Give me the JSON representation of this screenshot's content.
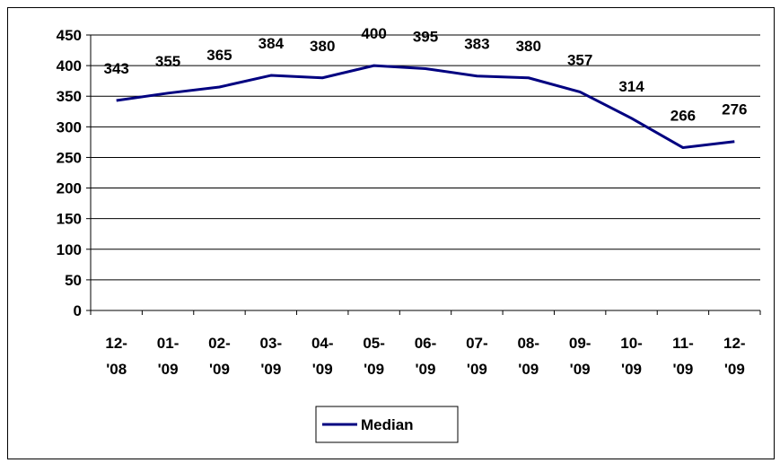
{
  "chart_data": {
    "type": "line",
    "categories": [
      "12-'08",
      "01-'09",
      "02-'09",
      "03-'09",
      "04-'09",
      "05-'09",
      "06-'09",
      "07-'09",
      "08-'09",
      "09-'09",
      "10-'09",
      "11-'09",
      "12-'09"
    ],
    "category_lines": [
      [
        "12-",
        "'08"
      ],
      [
        "01-",
        "'09"
      ],
      [
        "02-",
        "'09"
      ],
      [
        "03-",
        "'09"
      ],
      [
        "04-",
        "'09"
      ],
      [
        "05-",
        "'09"
      ],
      [
        "06-",
        "'09"
      ],
      [
        "07-",
        "'09"
      ],
      [
        "08-",
        "'09"
      ],
      [
        "09-",
        "'09"
      ],
      [
        "10-",
        "'09"
      ],
      [
        "11-",
        "'09"
      ],
      [
        "12-",
        "'09"
      ]
    ],
    "series": [
      {
        "name": "Median",
        "values": [
          343,
          355,
          365,
          384,
          380,
          400,
          395,
          383,
          380,
          357,
          314,
          266,
          276
        ]
      }
    ],
    "ylim": [
      0,
      450
    ],
    "yticks": [
      0,
      50,
      100,
      150,
      200,
      250,
      300,
      350,
      400,
      450
    ],
    "grid": true,
    "legend": "bottom",
    "line_color": "#000080"
  }
}
